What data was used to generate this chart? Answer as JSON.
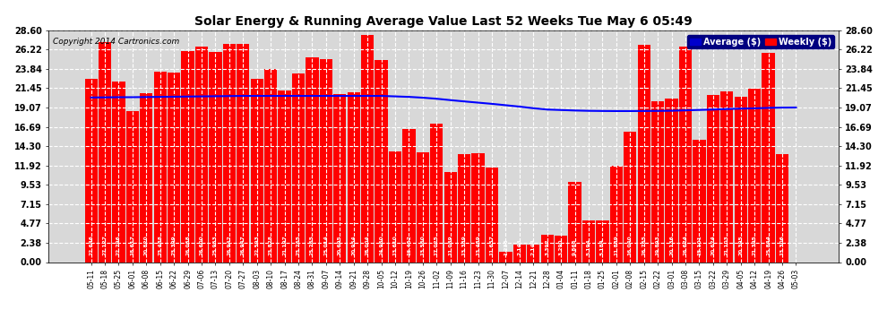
{
  "title": "Solar Energy & Running Average Value Last 52 Weeks Tue May 6 05:49",
  "copyright": "Copyright 2014 Cartronics.com",
  "bar_color": "#FF0000",
  "avg_line_color": "#0000FF",
  "background_color": "#FFFFFF",
  "plot_bg_color": "#D8D8D8",
  "grid_color": "#FFFFFF",
  "legend_avg_color": "#0000CC",
  "legend_weekly_color": "#FF0000",
  "ylim": [
    0.0,
    28.6
  ],
  "yticks": [
    0.0,
    2.38,
    4.77,
    7.15,
    9.53,
    11.92,
    14.3,
    16.69,
    19.07,
    21.45,
    23.84,
    26.22,
    28.6
  ],
  "categories": [
    "05-11",
    "05-18",
    "05-25",
    "06-01",
    "06-08",
    "06-15",
    "06-22",
    "06-29",
    "07-06",
    "07-13",
    "07-20",
    "07-27",
    "08-03",
    "08-10",
    "08-17",
    "08-24",
    "08-31",
    "09-07",
    "09-14",
    "09-21",
    "09-28",
    "10-05",
    "10-12",
    "10-19",
    "10-26",
    "11-02",
    "11-09",
    "11-16",
    "11-23",
    "11-30",
    "12-07",
    "12-14",
    "12-21",
    "12-28",
    "01-04",
    "01-11",
    "01-18",
    "01-25",
    "02-01",
    "02-08",
    "02-15",
    "02-22",
    "03-01",
    "03-08",
    "03-15",
    "03-22",
    "03-29",
    "04-05",
    "04-12",
    "04-19",
    "04-26",
    "05-03"
  ],
  "weekly_values": [
    22.646,
    27.127,
    22.296,
    18.617,
    20.82,
    23.488,
    23.399,
    26.038,
    26.6,
    25.953,
    26.942,
    26.947,
    22.593,
    23.828,
    21.197,
    23.265,
    25.265,
    25.014,
    20.695,
    20.954,
    28.004,
    24.96,
    13.61,
    16.452,
    13.56,
    17.025,
    11.089,
    13.339,
    13.439,
    11.657,
    1.236,
    2.143,
    2.144,
    3.392,
    3.29,
    9.866,
    5.194,
    5.184,
    11.839,
    16.04,
    26.765,
    19.893,
    20.136,
    26.624,
    15.101,
    20.624,
    21.103,
    20.395,
    21.395,
    25.844,
    13.306,
    0.0
  ],
  "avg_values": [
    20.3,
    20.32,
    20.34,
    20.34,
    20.36,
    20.38,
    20.4,
    20.42,
    20.44,
    20.46,
    20.48,
    20.5,
    20.5,
    20.5,
    20.5,
    20.5,
    20.5,
    20.5,
    20.5,
    20.5,
    20.5,
    20.5,
    20.44,
    20.38,
    20.28,
    20.15,
    19.98,
    19.82,
    19.67,
    19.52,
    19.35,
    19.18,
    18.98,
    18.82,
    18.76,
    18.7,
    18.66,
    18.64,
    18.63,
    18.63,
    18.64,
    18.65,
    18.67,
    18.72,
    18.77,
    18.82,
    18.88,
    18.93,
    18.97,
    19.02,
    19.06,
    19.07
  ]
}
